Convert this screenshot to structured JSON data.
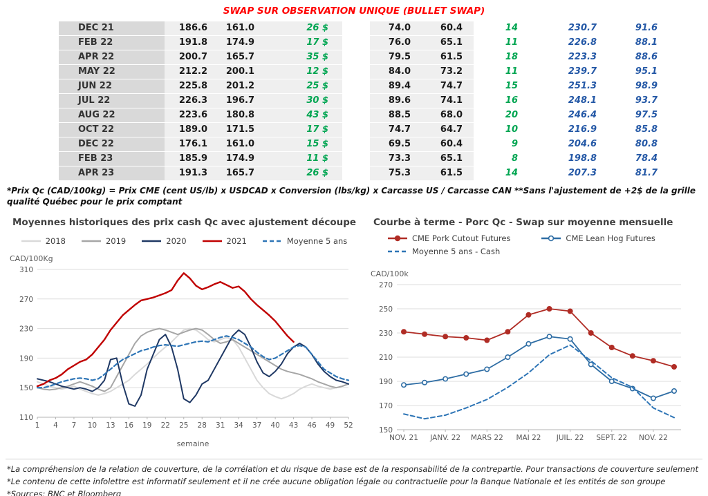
{
  "title": "SWAP SUR OBSERVATION UNIQUE (BULLET SWAP)",
  "colors": {
    "title_red": "#ff0000",
    "positive_green": "#00a551",
    "value_blue": "#2458a6",
    "header_gray": "#d9d9d9",
    "band_gray": "#efefef",
    "text_dark": "#1a1a1a",
    "chart_title_gray": "#3f3f3f",
    "axis_gray": "#595959"
  },
  "table": {
    "rows": [
      [
        "DEC 21",
        "186.6",
        "161.0",
        "26 $",
        "74.0",
        "60.4",
        "14",
        "230.7",
        "91.6"
      ],
      [
        "FEB 22",
        "191.8",
        "174.9",
        "17 $",
        "76.0",
        "65.1",
        "11",
        "226.8",
        "88.1"
      ],
      [
        "APR 22",
        "200.7",
        "165.7",
        "35 $",
        "79.5",
        "61.5",
        "18",
        "223.3",
        "88.6"
      ],
      [
        "MAY 22",
        "212.2",
        "200.1",
        "12 $",
        "84.0",
        "73.2",
        "11",
        "239.7",
        "95.1"
      ],
      [
        "JUN 22",
        "225.8",
        "201.2",
        "25 $",
        "89.4",
        "74.7",
        "15",
        "251.3",
        "98.9"
      ],
      [
        "JUL 22",
        "226.3",
        "196.7",
        "30 $",
        "89.6",
        "74.1",
        "16",
        "248.1",
        "93.7"
      ],
      [
        "AUG 22",
        "223.6",
        "180.8",
        "43 $",
        "88.5",
        "68.0",
        "20",
        "246.4",
        "97.5"
      ],
      [
        "OCT 22",
        "189.0",
        "171.5",
        "17 $",
        "74.7",
        "64.7",
        "10",
        "216.9",
        "85.8"
      ],
      [
        "DEC 22",
        "176.1",
        "161.0",
        "15 $",
        "69.5",
        "60.4",
        "9",
        "204.6",
        "80.8"
      ],
      [
        "FEB 23",
        "185.9",
        "174.9",
        "11 $",
        "73.3",
        "65.1",
        "8",
        "198.8",
        "78.4"
      ],
      [
        "APR 23",
        "191.3",
        "165.7",
        "26 $",
        "75.3",
        "61.5",
        "14",
        "207.3",
        "81.7"
      ]
    ]
  },
  "table_footnote": "*Prix Qc (CAD/100kg) = Prix CME (cent US/lb) x USDCAD x Conversion (lbs/kg) x Carcasse US / Carcasse CAN **Sans l'ajustement de +2$ de la grille qualité Québec pour le prix comptant",
  "chart_data": [
    {
      "type": "line",
      "title": "Moyennes historiques des prix cash Qc avec ajustement découpe",
      "ylabel": "CAD/100Kg",
      "xlabel": "semaine",
      "ylim": [
        110,
        310
      ],
      "yticks": [
        110,
        150,
        190,
        230,
        270,
        310
      ],
      "x_domain": [
        1,
        52
      ],
      "xticks": [
        1,
        4,
        7,
        10,
        13,
        16,
        19,
        22,
        25,
        28,
        31,
        34,
        37,
        40,
        43,
        46,
        49,
        52
      ],
      "grid": true,
      "legend_position": "top",
      "series": [
        {
          "name": "2018",
          "color": "#d9d9d9",
          "width": 2,
          "x0": 1,
          "values": [
            158,
            155,
            152,
            150,
            148,
            150,
            152,
            148,
            145,
            142,
            140,
            142,
            145,
            150,
            155,
            160,
            168,
            175,
            182,
            190,
            198,
            205,
            212,
            220,
            228,
            230,
            228,
            222,
            215,
            212,
            215,
            218,
            215,
            205,
            190,
            175,
            160,
            150,
            142,
            138,
            135,
            138,
            142,
            148,
            152,
            155,
            152,
            150,
            148,
            150,
            152,
            155
          ]
        },
        {
          "name": "2019",
          "color": "#a6a6a6",
          "width": 2,
          "x0": 1,
          "values": [
            150,
            148,
            147,
            148,
            150,
            152,
            155,
            158,
            155,
            152,
            148,
            145,
            150,
            165,
            180,
            195,
            210,
            220,
            225,
            228,
            230,
            228,
            225,
            222,
            225,
            228,
            230,
            228,
            222,
            215,
            210,
            212,
            215,
            210,
            205,
            200,
            195,
            190,
            185,
            180,
            175,
            172,
            170,
            168,
            165,
            162,
            158,
            155,
            152,
            150,
            152,
            155
          ]
        },
        {
          "name": "2020",
          "color": "#1f3864",
          "width": 2,
          "x0": 1,
          "values": [
            162,
            160,
            158,
            155,
            152,
            150,
            148,
            150,
            148,
            145,
            150,
            160,
            188,
            190,
            155,
            128,
            125,
            140,
            175,
            195,
            215,
            222,
            205,
            175,
            135,
            130,
            140,
            155,
            160,
            175,
            190,
            205,
            220,
            228,
            222,
            205,
            185,
            170,
            165,
            172,
            182,
            196,
            205,
            210,
            205,
            195,
            182,
            172,
            165,
            160,
            158,
            155
          ]
        },
        {
          "name": "2021",
          "color": "#c00000",
          "width": 2.4,
          "x0": 1,
          "values": [
            152,
            155,
            160,
            163,
            168,
            175,
            180,
            185,
            188,
            195,
            205,
            215,
            228,
            238,
            248,
            255,
            262,
            268,
            270,
            272,
            275,
            278,
            282,
            295,
            305,
            298,
            288,
            283,
            286,
            290,
            293,
            289,
            285,
            287,
            280,
            270,
            262,
            255,
            248,
            240,
            230,
            220,
            212
          ]
        },
        {
          "name": "Moyenne 5 ans",
          "color": "#2e75b6",
          "dash": "6 4",
          "width": 2.2,
          "x0": 1,
          "values": [
            150,
            150,
            152,
            155,
            158,
            160,
            162,
            163,
            162,
            160,
            162,
            168,
            175,
            182,
            188,
            192,
            196,
            200,
            202,
            205,
            207,
            208,
            207,
            206,
            208,
            210,
            212,
            213,
            212,
            215,
            218,
            220,
            218,
            215,
            210,
            205,
            198,
            192,
            188,
            190,
            195,
            200,
            205,
            207,
            205,
            195,
            185,
            175,
            170,
            165,
            162,
            160
          ]
        }
      ]
    },
    {
      "type": "line",
      "title": "Courbe à terme - Porc Qc - Swap sur moyenne mensuelle",
      "ylabel": "CAD/100k",
      "ylim": [
        150,
        270
      ],
      "yticks": [
        150,
        170,
        190,
        210,
        230,
        250,
        270
      ],
      "x_domain": [
        0,
        13
      ],
      "xticks": [
        {
          "v": 0,
          "label": "NOV. 21"
        },
        {
          "v": 2,
          "label": "JANV. 22"
        },
        {
          "v": 4,
          "label": "MARS 22"
        },
        {
          "v": 6,
          "label": "MAI 22"
        },
        {
          "v": 8,
          "label": "JUIL. 22"
        },
        {
          "v": 10,
          "label": "SEPT. 22"
        },
        {
          "v": 12,
          "label": "NOV. 22"
        }
      ],
      "grid": true,
      "legend_position": "top",
      "series": [
        {
          "name": "CME Pork Cutout Futures",
          "color": "#b02c25",
          "width": 1.8,
          "marker": "filled",
          "x0": 0,
          "values": [
            231,
            229,
            227,
            226,
            224,
            231,
            245,
            250,
            248,
            230,
            218,
            211,
            207,
            202
          ]
        },
        {
          "name": "CME Lean Hog Futures",
          "color": "#2e6da4",
          "width": 1.8,
          "marker": "open",
          "x0": 0,
          "values": [
            187,
            189,
            192,
            196,
            200,
            210,
            221,
            227,
            225,
            204,
            190,
            184,
            176,
            182
          ]
        },
        {
          "name": "Moyenne 5 ans - Cash",
          "color": "#2e75b6",
          "width": 2,
          "dash": "6 4",
          "x0": 0,
          "values": [
            163,
            159,
            162,
            168,
            175,
            185,
            197,
            212,
            220,
            207,
            193,
            185,
            168,
            160
          ]
        }
      ]
    }
  ],
  "footnotes": [
    "*La compréhension de la relation de couverture, de la corrélation et du risque de base est de la responsabilité de la contrepartie. Pour transactions de couverture seulement",
    "*Le contenu de cette infolettre est informatif seulement et il ne crée aucune obligation légale ou contractuelle pour la Banque Nationale et les entités de son groupe",
    "*Sources: BNC et Bloomberg"
  ]
}
